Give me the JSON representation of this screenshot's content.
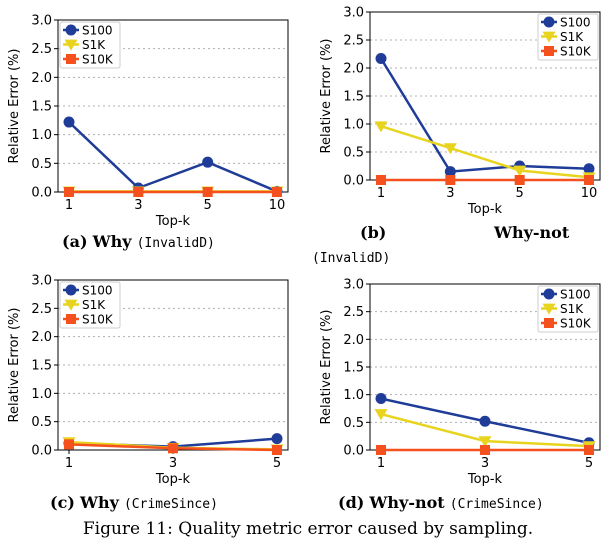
{
  "chart_data": [
    {
      "type": "line",
      "panel": "a",
      "categories": [
        "1",
        "3",
        "5",
        "10"
      ],
      "series": [
        {
          "name": "S100",
          "color": "#1f3c99",
          "marker": "circle",
          "values": [
            1.22,
            0.07,
            0.52,
            0.01
          ]
        },
        {
          "name": "S1K",
          "color": "#e8d41e",
          "marker": "triangle-down",
          "values": [
            0.01,
            0.01,
            0.01,
            0.01
          ]
        },
        {
          "name": "S10K",
          "color": "#f4511e",
          "marker": "square",
          "values": [
            0.0,
            0.0,
            0.0,
            0.0
          ]
        }
      ],
      "xlabel": "Top-k",
      "ylabel": "Relative Error (%)",
      "ylim": [
        0,
        3.0
      ],
      "yticks": [
        "0.0",
        "0.5",
        "1.0",
        "1.5",
        "2.0",
        "2.5",
        "3.0"
      ],
      "grid": "horizontal dotted",
      "legend": "top-left"
    },
    {
      "type": "line",
      "panel": "b",
      "categories": [
        "1",
        "3",
        "5",
        "10"
      ],
      "series": [
        {
          "name": "S100",
          "color": "#1f3c99",
          "marker": "circle",
          "values": [
            2.17,
            0.15,
            0.25,
            0.2
          ]
        },
        {
          "name": "S1K",
          "color": "#e8d41e",
          "marker": "triangle-down",
          "values": [
            0.96,
            0.57,
            0.17,
            0.05
          ]
        },
        {
          "name": "S10K",
          "color": "#f4511e",
          "marker": "square",
          "values": [
            0.0,
            0.0,
            0.0,
            0.0
          ]
        }
      ],
      "xlabel": "Top-k",
      "ylabel": "Relative Error (%)",
      "ylim": [
        0,
        3.0
      ],
      "yticks": [
        "0.0",
        "0.5",
        "1.0",
        "1.5",
        "2.0",
        "2.5",
        "3.0"
      ],
      "grid": "horizontal dotted",
      "legend": "top-right"
    },
    {
      "type": "line",
      "panel": "c",
      "categories": [
        "1",
        "3",
        "5"
      ],
      "series": [
        {
          "name": "S100",
          "color": "#1f3c99",
          "marker": "circle",
          "values": [
            0.12,
            0.06,
            0.2
          ]
        },
        {
          "name": "S1K",
          "color": "#e8d41e",
          "marker": "triangle-down",
          "values": [
            0.14,
            0.04,
            0.01
          ]
        },
        {
          "name": "S10K",
          "color": "#f4511e",
          "marker": "square",
          "values": [
            0.1,
            0.03,
            0.0
          ]
        }
      ],
      "xlabel": "Top-k",
      "ylabel": "Relative Error (%)",
      "ylim": [
        0,
        3.0
      ],
      "yticks": [
        "0.0",
        "0.5",
        "1.0",
        "1.5",
        "2.0",
        "2.5",
        "3.0"
      ],
      "grid": "horizontal dotted",
      "legend": "top-left"
    },
    {
      "type": "line",
      "panel": "d",
      "categories": [
        "1",
        "3",
        "5"
      ],
      "series": [
        {
          "name": "S100",
          "color": "#1f3c99",
          "marker": "circle",
          "values": [
            0.93,
            0.52,
            0.13
          ]
        },
        {
          "name": "S1K",
          "color": "#e8d41e",
          "marker": "triangle-down",
          "values": [
            0.65,
            0.16,
            0.07
          ]
        },
        {
          "name": "S10K",
          "color": "#f4511e",
          "marker": "square",
          "values": [
            0.0,
            0.0,
            0.0
          ]
        }
      ],
      "xlabel": "Top-k",
      "ylabel": "Relative Error (%)",
      "ylim": [
        0,
        3.0
      ],
      "yticks": [
        "0.0",
        "0.5",
        "1.0",
        "1.5",
        "2.0",
        "2.5",
        "3.0"
      ],
      "grid": "horizontal dotted",
      "legend": "top-right"
    }
  ],
  "captions": {
    "a": {
      "label": "(a)",
      "kind": "Why",
      "dataset": "(InvalidD)"
    },
    "b": {
      "label": "(b)",
      "kind": "Why-not",
      "dataset": "(InvalidD)"
    },
    "c": {
      "label": "(c)",
      "kind": "Why",
      "dataset": "(CrimeSince)"
    },
    "d": {
      "label": "(d)",
      "kind": "Why-not",
      "dataset": "(CrimeSince)"
    }
  },
  "figure_caption": "Figure 11: Quality metric error caused by sampling."
}
